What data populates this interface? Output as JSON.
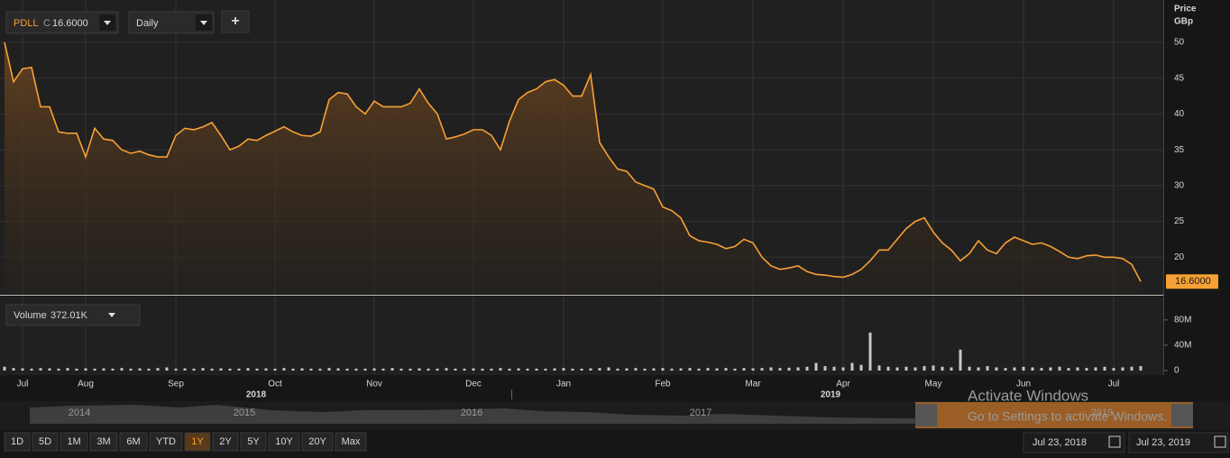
{
  "toolbar": {
    "symbol": "PDLL",
    "close_label": "C",
    "close_value": "16.6000",
    "interval": "Daily",
    "add": "+"
  },
  "chart_data": [
    {
      "type": "area",
      "y_axis_title": "Price",
      "y_axis_unit": "GBp",
      "color": "#f7a035",
      "grid": true,
      "categories": [
        null,
        null,
        "Jul",
        null,
        null,
        null,
        null,
        null,
        null,
        "Aug",
        null,
        null,
        null,
        null,
        null,
        null,
        null,
        null,
        null,
        "Sep",
        null,
        null,
        null,
        null,
        null,
        null,
        null,
        null,
        null,
        null,
        "Oct",
        null,
        null,
        null,
        null,
        null,
        null,
        null,
        null,
        null,
        null,
        "Nov",
        null,
        null,
        null,
        null,
        null,
        null,
        null,
        null,
        null,
        null,
        "Dec",
        null,
        null,
        null,
        null,
        null,
        null,
        null,
        null,
        null,
        "Jan",
        null,
        null,
        null,
        null,
        null,
        null,
        null,
        null,
        null,
        null,
        "Feb",
        null,
        null,
        null,
        null,
        null,
        null,
        null,
        null,
        null,
        "Mar",
        null,
        null,
        null,
        null,
        null,
        null,
        null,
        null,
        null,
        "Apr",
        null,
        null,
        null,
        null,
        null,
        null,
        null,
        null,
        null,
        "May",
        null,
        null,
        null,
        null,
        null,
        null,
        null,
        null,
        null,
        "Jun",
        null,
        null,
        null,
        null,
        null,
        null,
        null,
        null,
        null,
        "Jul",
        null,
        null,
        null
      ],
      "year_labels": [
        "2018",
        "2019"
      ],
      "values": [
        50,
        44.5,
        46.3,
        46.5,
        41,
        41,
        37.5,
        37.3,
        37.3,
        34,
        38,
        36.5,
        36.3,
        35,
        34.5,
        34.8,
        34.3,
        34,
        34,
        37,
        38,
        37.8,
        38.2,
        38.8,
        37,
        35,
        35.5,
        36.5,
        36.3,
        37,
        37.6,
        38.2,
        37.5,
        37,
        36.9,
        37.5,
        42,
        43,
        42.8,
        41,
        40,
        41.8,
        41,
        41,
        41,
        41.5,
        43.5,
        41.5,
        40,
        36.5,
        36.8,
        37.2,
        37.8,
        37.8,
        37,
        35,
        39,
        42,
        43,
        43.5,
        44.5,
        44.8,
        44,
        42.5,
        42.5,
        45.5,
        36,
        34,
        32.3,
        32,
        30.5,
        30,
        29.5,
        27,
        26.5,
        25.5,
        23,
        22.3,
        22.1,
        21.8,
        21.2,
        21.5,
        22.5,
        22,
        20,
        18.8,
        18.3,
        18.5,
        18.8,
        18,
        17.6,
        17.5,
        17.3,
        17.2,
        17.6,
        18.3,
        19.5,
        21,
        21,
        22.5,
        24,
        25,
        25.5,
        23.5,
        22,
        21,
        19.5,
        20.5,
        22.3,
        21,
        20.5,
        22,
        22.8,
        22.3,
        21.8,
        22,
        21.5,
        20.8,
        20,
        19.8,
        20.2,
        20.3,
        20,
        20,
        19.8,
        19,
        16.6
      ],
      "last_value_label": "16.6000",
      "ylim": [
        15,
        55
      ],
      "yticks": [
        20,
        25,
        30,
        35,
        40,
        45,
        50
      ]
    },
    {
      "type": "bar",
      "legend": "Volume",
      "legend_value": "372.01K",
      "color": "#c8c8c8",
      "values": [
        6,
        4,
        3.5,
        3,
        4,
        3.5,
        3,
        4,
        3,
        3.5,
        3,
        3.5,
        3,
        4,
        3,
        3.5,
        3,
        4,
        5,
        3,
        3.5,
        3,
        4,
        3,
        3.5,
        3,
        3,
        4,
        3,
        3.5,
        3,
        4,
        3,
        3.5,
        3,
        3,
        4,
        3.5,
        3,
        3,
        3,
        3.5,
        3,
        4,
        3,
        3,
        3.5,
        3,
        3,
        4,
        3,
        3,
        3.5,
        3,
        3,
        4,
        3,
        3.5,
        3,
        3,
        3,
        3.5,
        4,
        3,
        3,
        3.5,
        4,
        5,
        3,
        3.5,
        4,
        3,
        3.5,
        4,
        3,
        3.5,
        4,
        3,
        4,
        3.5,
        4,
        3,
        4,
        3.5,
        4,
        5,
        4,
        4.5,
        5,
        6,
        12,
        7,
        6,
        5,
        12,
        9,
        60,
        8,
        6,
        5,
        6,
        5,
        7,
        8,
        6,
        5,
        33,
        6,
        5,
        7,
        5,
        4,
        5,
        6,
        5,
        4,
        5,
        6,
        4,
        5,
        4,
        5,
        6,
        4,
        5,
        6,
        7
      ],
      "ylim": [
        0,
        104
      ],
      "yticks": [
        0,
        {
          "value": 40,
          "label": "40M"
        },
        {
          "value": 80,
          "label": "80M"
        }
      ]
    }
  ],
  "navigator": {
    "years": [
      "2014",
      "2015",
      "2016",
      "2017",
      "2019"
    ]
  },
  "range_buttons": [
    "1D",
    "5D",
    "1M",
    "3M",
    "6M",
    "YTD",
    "1Y",
    "2Y",
    "5Y",
    "10Y",
    "20Y",
    "Max"
  ],
  "active_range": "1Y",
  "date_range": {
    "from": "Jul 23, 2018",
    "to": "Jul 23, 2019"
  },
  "watermark": {
    "title": "Activate Windows",
    "subtitle": "Go to Settings to activate Windows."
  }
}
